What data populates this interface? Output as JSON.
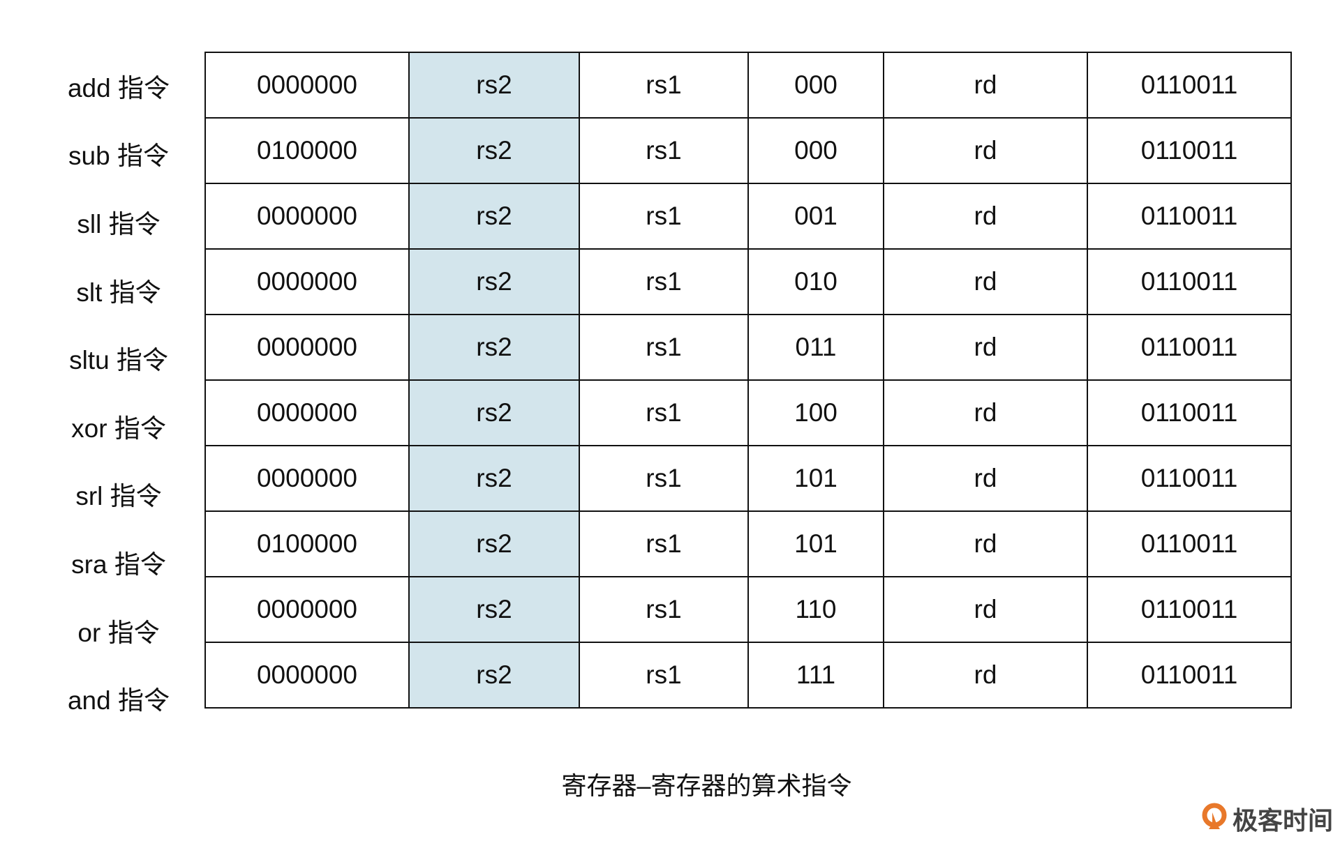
{
  "rows": [
    {
      "label": "add 指令",
      "cells": [
        "0000000",
        "rs2",
        "rs1",
        "000",
        "rd",
        "0110011"
      ]
    },
    {
      "label": "sub 指令",
      "cells": [
        "0100000",
        "rs2",
        "rs1",
        "000",
        "rd",
        "0110011"
      ]
    },
    {
      "label": "sll 指令",
      "cells": [
        "0000000",
        "rs2",
        "rs1",
        "001",
        "rd",
        "0110011"
      ]
    },
    {
      "label": "slt 指令",
      "cells": [
        "0000000",
        "rs2",
        "rs1",
        "010",
        "rd",
        "0110011"
      ]
    },
    {
      "label": "sltu 指令",
      "cells": [
        "0000000",
        "rs2",
        "rs1",
        "011",
        "rd",
        "0110011"
      ]
    },
    {
      "label": "xor 指令",
      "cells": [
        "0000000",
        "rs2",
        "rs1",
        "100",
        "rd",
        "0110011"
      ]
    },
    {
      "label": "srl 指令",
      "cells": [
        "0000000",
        "rs2",
        "rs1",
        "101",
        "rd",
        "0110011"
      ]
    },
    {
      "label": "sra 指令",
      "cells": [
        "0100000",
        "rs2",
        "rs1",
        "101",
        "rd",
        "0110011"
      ]
    },
    {
      "label": "or 指令",
      "cells": [
        "0000000",
        "rs2",
        "rs1",
        "110",
        "rd",
        "0110011"
      ]
    },
    {
      "label": "and 指令",
      "cells": [
        "0000000",
        "rs2",
        "rs1",
        "111",
        "rd",
        "0110011"
      ]
    }
  ],
  "caption": "寄存器–寄存器的算术指令",
  "logo": {
    "text": "极客时间",
    "color": "#e8782a"
  },
  "colors": {
    "rs2_highlight": "#d3e5ec"
  }
}
